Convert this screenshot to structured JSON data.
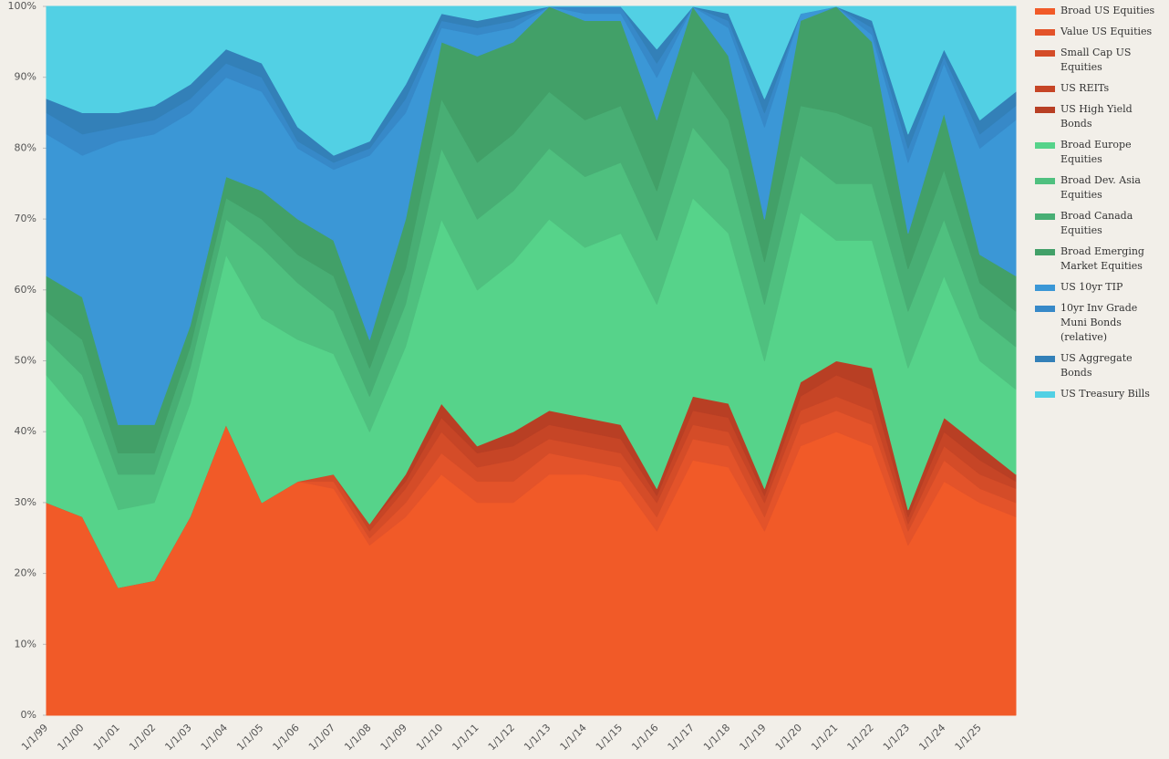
{
  "chart_data": {
    "type": "stacked_area",
    "categories": [
      "1/1/99",
      "1/1/00",
      "1/1/01",
      "1/1/02",
      "1/1/03",
      "1/1/04",
      "1/1/05",
      "1/1/06",
      "1/1/07",
      "1/1/08",
      "1/1/09",
      "1/1/10",
      "1/1/11",
      "1/1/12",
      "1/1/13",
      "1/1/14",
      "1/1/15",
      "1/1/16",
      "1/1/17",
      "1/1/18",
      "1/1/19",
      "1/1/20",
      "1/1/21",
      "1/1/22",
      "1/1/23",
      "1/1/24",
      "1/1/25",
      null
    ],
    "ylim": [
      0,
      100
    ],
    "yticks": [
      {
        "value": 0,
        "label": "0%"
      },
      {
        "value": 10,
        "label": "10%"
      },
      {
        "value": 20,
        "label": "20%"
      },
      {
        "value": 30,
        "label": "30%"
      },
      {
        "value": 40,
        "label": "40%"
      },
      {
        "value": 50,
        "label": "50%"
      },
      {
        "value": 60,
        "label": "60%"
      },
      {
        "value": 70,
        "label": "70%"
      },
      {
        "value": 80,
        "label": "80%"
      },
      {
        "value": 90,
        "label": "90%"
      },
      {
        "value": 100,
        "label": "100%"
      }
    ],
    "series": [
      {
        "name": "Broad US Equities",
        "color": "#f15a28",
        "values": [
          30,
          28,
          18,
          19,
          28,
          41,
          30,
          33,
          32,
          24,
          28,
          34,
          30,
          30,
          34,
          34,
          33,
          26,
          36,
          35,
          26,
          38,
          40,
          38,
          24,
          33,
          30,
          28
        ]
      },
      {
        "name": "Value US Equities",
        "color": "#e3532a",
        "values": [
          0,
          0,
          0,
          0,
          0,
          0,
          0,
          0,
          1,
          1,
          2,
          3,
          3,
          3,
          3,
          2,
          2,
          2,
          3,
          3,
          2,
          3,
          3,
          3,
          2,
          3,
          2,
          2
        ]
      },
      {
        "name": "Small Cap US Equities",
        "color": "#d44c28",
        "values": [
          0,
          0,
          0,
          0,
          0,
          0,
          0,
          0,
          1,
          1,
          2,
          3,
          2,
          3,
          2,
          2,
          2,
          2,
          2,
          2,
          2,
          2,
          2,
          2,
          1,
          2,
          2,
          2
        ]
      },
      {
        "name": "US REITs",
        "color": "#c64526",
        "values": [
          0,
          0,
          0,
          0,
          0,
          0,
          0,
          0,
          0,
          1,
          1,
          2,
          2,
          2,
          2,
          2,
          2,
          1,
          2,
          2,
          1,
          2,
          3,
          3,
          1,
          2,
          2,
          1
        ]
      },
      {
        "name": "US High Yield Bonds",
        "color": "#b83f24",
        "values": [
          0,
          0,
          0,
          0,
          0,
          0,
          0,
          0,
          0,
          0,
          1,
          2,
          1,
          2,
          2,
          2,
          2,
          1,
          2,
          2,
          1,
          2,
          2,
          3,
          1,
          2,
          2,
          1
        ]
      },
      {
        "name": "Broad Europe Equities",
        "color": "#56d38a",
        "values": [
          18,
          14,
          11,
          11,
          16,
          24,
          26,
          20,
          17,
          13,
          18,
          26,
          22,
          24,
          27,
          24,
          27,
          26,
          28,
          24,
          18,
          24,
          17,
          18,
          20,
          20,
          12,
          12
        ]
      },
      {
        "name": "Broad Dev. Asia Equities",
        "color": "#4fc07f",
        "values": [
          5,
          6,
          5,
          4,
          5,
          5,
          10,
          8,
          6,
          5,
          6,
          10,
          10,
          10,
          10,
          10,
          10,
          9,
          10,
          9,
          8,
          8,
          8,
          8,
          8,
          8,
          6,
          6
        ]
      },
      {
        "name": "Broad Canada Equities",
        "color": "#48ae74",
        "values": [
          4,
          5,
          3,
          3,
          3,
          3,
          4,
          4,
          5,
          4,
          5,
          7,
          8,
          8,
          8,
          8,
          8,
          7,
          8,
          7,
          6,
          7,
          10,
          8,
          6,
          7,
          5,
          5
        ]
      },
      {
        "name": "Broad Emerging Market Equities",
        "color": "#42a068",
        "values": [
          5,
          6,
          4,
          4,
          3,
          3,
          4,
          5,
          5,
          4,
          7,
          8,
          15,
          13,
          12,
          14,
          12,
          10,
          9,
          9,
          6,
          12,
          15,
          12,
          5,
          8,
          4,
          5
        ]
      },
      {
        "name": "US 10yr TIP",
        "color": "#3b97d6",
        "values": [
          20,
          20,
          40,
          41,
          30,
          14,
          14,
          10,
          10,
          26,
          15,
          2,
          3,
          2,
          0,
          1,
          1,
          6,
          0,
          4,
          13,
          1,
          0,
          1,
          10,
          7,
          15,
          22
        ]
      },
      {
        "name": "10yr Inv Grade Muni Bonds (relative)",
        "color": "#3789c8",
        "values": [
          3,
          3,
          2,
          2,
          2,
          2,
          2,
          1,
          1,
          1,
          2,
          1,
          1,
          1,
          0,
          1,
          1,
          2,
          0,
          1,
          2,
          0,
          0,
          1,
          2,
          1,
          2,
          2
        ]
      },
      {
        "name": "US Aggregate Bonds",
        "color": "#3380b8",
        "values": [
          2,
          3,
          2,
          2,
          2,
          2,
          2,
          2,
          1,
          1,
          2,
          1,
          1,
          1,
          0,
          0,
          0,
          2,
          0,
          1,
          2,
          0,
          0,
          1,
          2,
          1,
          2,
          2
        ]
      },
      {
        "name": "US Treasury Bills",
        "color": "#52d0e4",
        "values": [
          13,
          15,
          15,
          14,
          11,
          6,
          8,
          17,
          21,
          19,
          11,
          1,
          2,
          1,
          0,
          0,
          0,
          6,
          0,
          1,
          13,
          1,
          0,
          2,
          18,
          6,
          16,
          12
        ]
      }
    ]
  }
}
